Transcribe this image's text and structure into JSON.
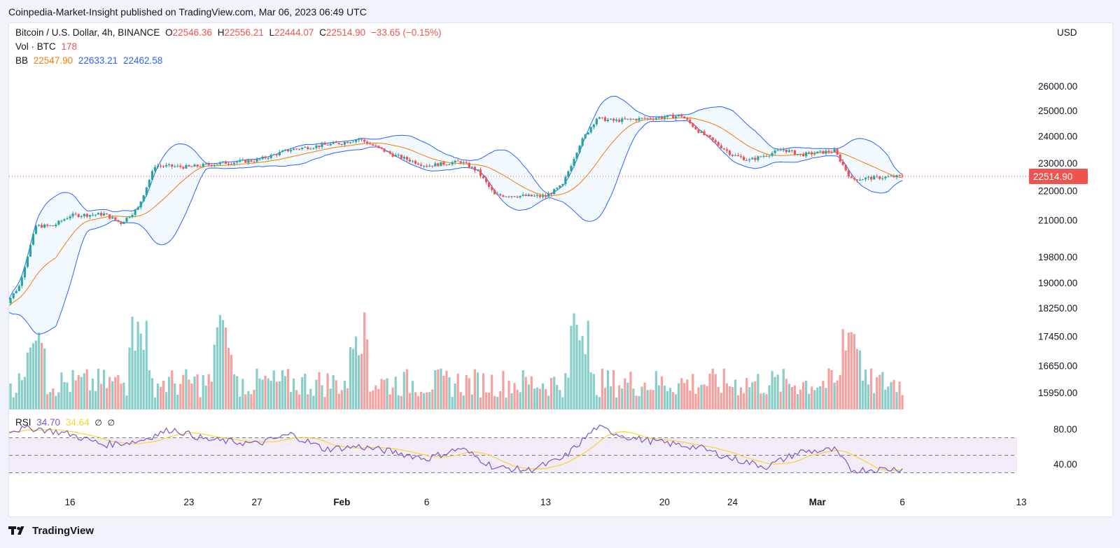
{
  "header": {
    "publish_line": "Coinpedia-Market-Insight published on TradingView.com, Mar 06, 2023 06:49 UTC"
  },
  "legend": {
    "symbol": "Bitcoin / U.S. Dollar, 4h, BINANCE",
    "open_label": "O",
    "open": "22546.36",
    "high_label": "H",
    "high": "22556.21",
    "low_label": "L",
    "low": "22444.07",
    "close_label": "C",
    "close": "22514.90",
    "change": "−33.65 (−0.15%)",
    "vol_label": "Vol · BTC",
    "vol_value": "178",
    "bb_label": "BB",
    "bb_basis": "22547.90",
    "bb_upper": "22633.21",
    "bb_lower": "22462.58",
    "rsi_label": "RSI",
    "rsi_value": "34.70",
    "rsi_ma": "34.64",
    "rsi_sym1": "∅",
    "rsi_sym2": "∅"
  },
  "axis": {
    "currency": "USD"
  },
  "footer": {
    "brand": "TradingView",
    "logo_icon": "tradingview-logo-icon"
  },
  "colors": {
    "up": "#26a69a",
    "down": "#ef5350",
    "bb_band": "#2962ff",
    "bb_basis": "#f57c00",
    "rsi": "#7e57c2",
    "rsi_ma": "#f5d62e",
    "rsi_bg": "#ede7f6",
    "price_line": "#ef5350"
  },
  "chart_data": {
    "type": "candlestick",
    "title": "Bitcoin / U.S. Dollar, 4h, BINANCE",
    "price_scale": {
      "ticks": [
        15950,
        16650,
        17450,
        18250,
        19000,
        19800,
        21000,
        22000,
        23000,
        24000,
        25000,
        26000
      ],
      "last_price": 22514.9,
      "scale": "log"
    },
    "rsi_scale": {
      "ticks": [
        40,
        80
      ],
      "band_upper": 70,
      "band_middle": 50,
      "band_lower": 30
    },
    "time_axis": {
      "labels": [
        "16",
        "23",
        "27",
        "Feb",
        "6",
        "13",
        "20",
        "24",
        "Mar",
        "6",
        "13"
      ],
      "dates": [
        "2023-01-16",
        "2023-01-23",
        "2023-01-27",
        "2023-02-01",
        "2023-02-06",
        "2023-02-13",
        "2023-02-20",
        "2023-02-24",
        "2023-03-01",
        "2023-03-06",
        "2023-03-13"
      ]
    },
    "price_anchors": {
      "dates": [
        "2023-01-12",
        "2023-01-13",
        "2023-01-14",
        "2023-01-15",
        "2023-01-16",
        "2023-01-18",
        "2023-01-19",
        "2023-01-20",
        "2023-01-21",
        "2023-01-23",
        "2023-01-25",
        "2023-01-27",
        "2023-01-29",
        "2023-02-01",
        "2023-02-02",
        "2023-02-04",
        "2023-02-06",
        "2023-02-08",
        "2023-02-09",
        "2023-02-10",
        "2023-02-13",
        "2023-02-14",
        "2023-02-15",
        "2023-02-16",
        "2023-02-17",
        "2023-02-19",
        "2023-02-21",
        "2023-02-22",
        "2023-02-24",
        "2023-02-25",
        "2023-02-27",
        "2023-02-28",
        "2023-03-02",
        "2023-03-03",
        "2023-03-04",
        "2023-03-06"
      ],
      "close": [
        18200,
        18900,
        20800,
        20800,
        21150,
        21200,
        20900,
        21400,
        22900,
        22850,
        23000,
        23100,
        23500,
        23750,
        23900,
        23300,
        22900,
        23050,
        22700,
        21850,
        21800,
        22200,
        23700,
        24700,
        24600,
        24700,
        24800,
        24200,
        23300,
        23100,
        23500,
        23300,
        23450,
        22400,
        22450,
        22514.9
      ]
    },
    "bollinger": {
      "basis_now": 22547.9,
      "upper_now": 22633.21,
      "lower_now": 22462.58
    },
    "volume": {
      "current": 178,
      "spike_dates": [
        "2023-01-14",
        "2023-01-20",
        "2023-01-25",
        "2023-02-02",
        "2023-02-15",
        "2023-03-03"
      ]
    },
    "rsi": {
      "current": 34.7,
      "ma_current": 34.64,
      "dates": [
        "2023-01-12",
        "2023-01-14",
        "2023-01-16",
        "2023-01-18",
        "2023-01-20",
        "2023-01-22",
        "2023-01-24",
        "2023-01-27",
        "2023-01-29",
        "2023-01-31",
        "2023-02-02",
        "2023-02-04",
        "2023-02-06",
        "2023-02-08",
        "2023-02-10",
        "2023-02-12",
        "2023-02-14",
        "2023-02-16",
        "2023-02-18",
        "2023-02-20",
        "2023-02-22",
        "2023-02-24",
        "2023-02-26",
        "2023-02-28",
        "2023-03-02",
        "2023-03-03",
        "2023-03-06"
      ],
      "values": [
        78,
        81,
        74,
        62,
        66,
        80,
        68,
        63,
        74,
        57,
        60,
        54,
        46,
        58,
        36,
        33,
        46,
        82,
        70,
        64,
        59,
        46,
        37,
        54,
        56,
        33,
        34.7
      ]
    }
  }
}
